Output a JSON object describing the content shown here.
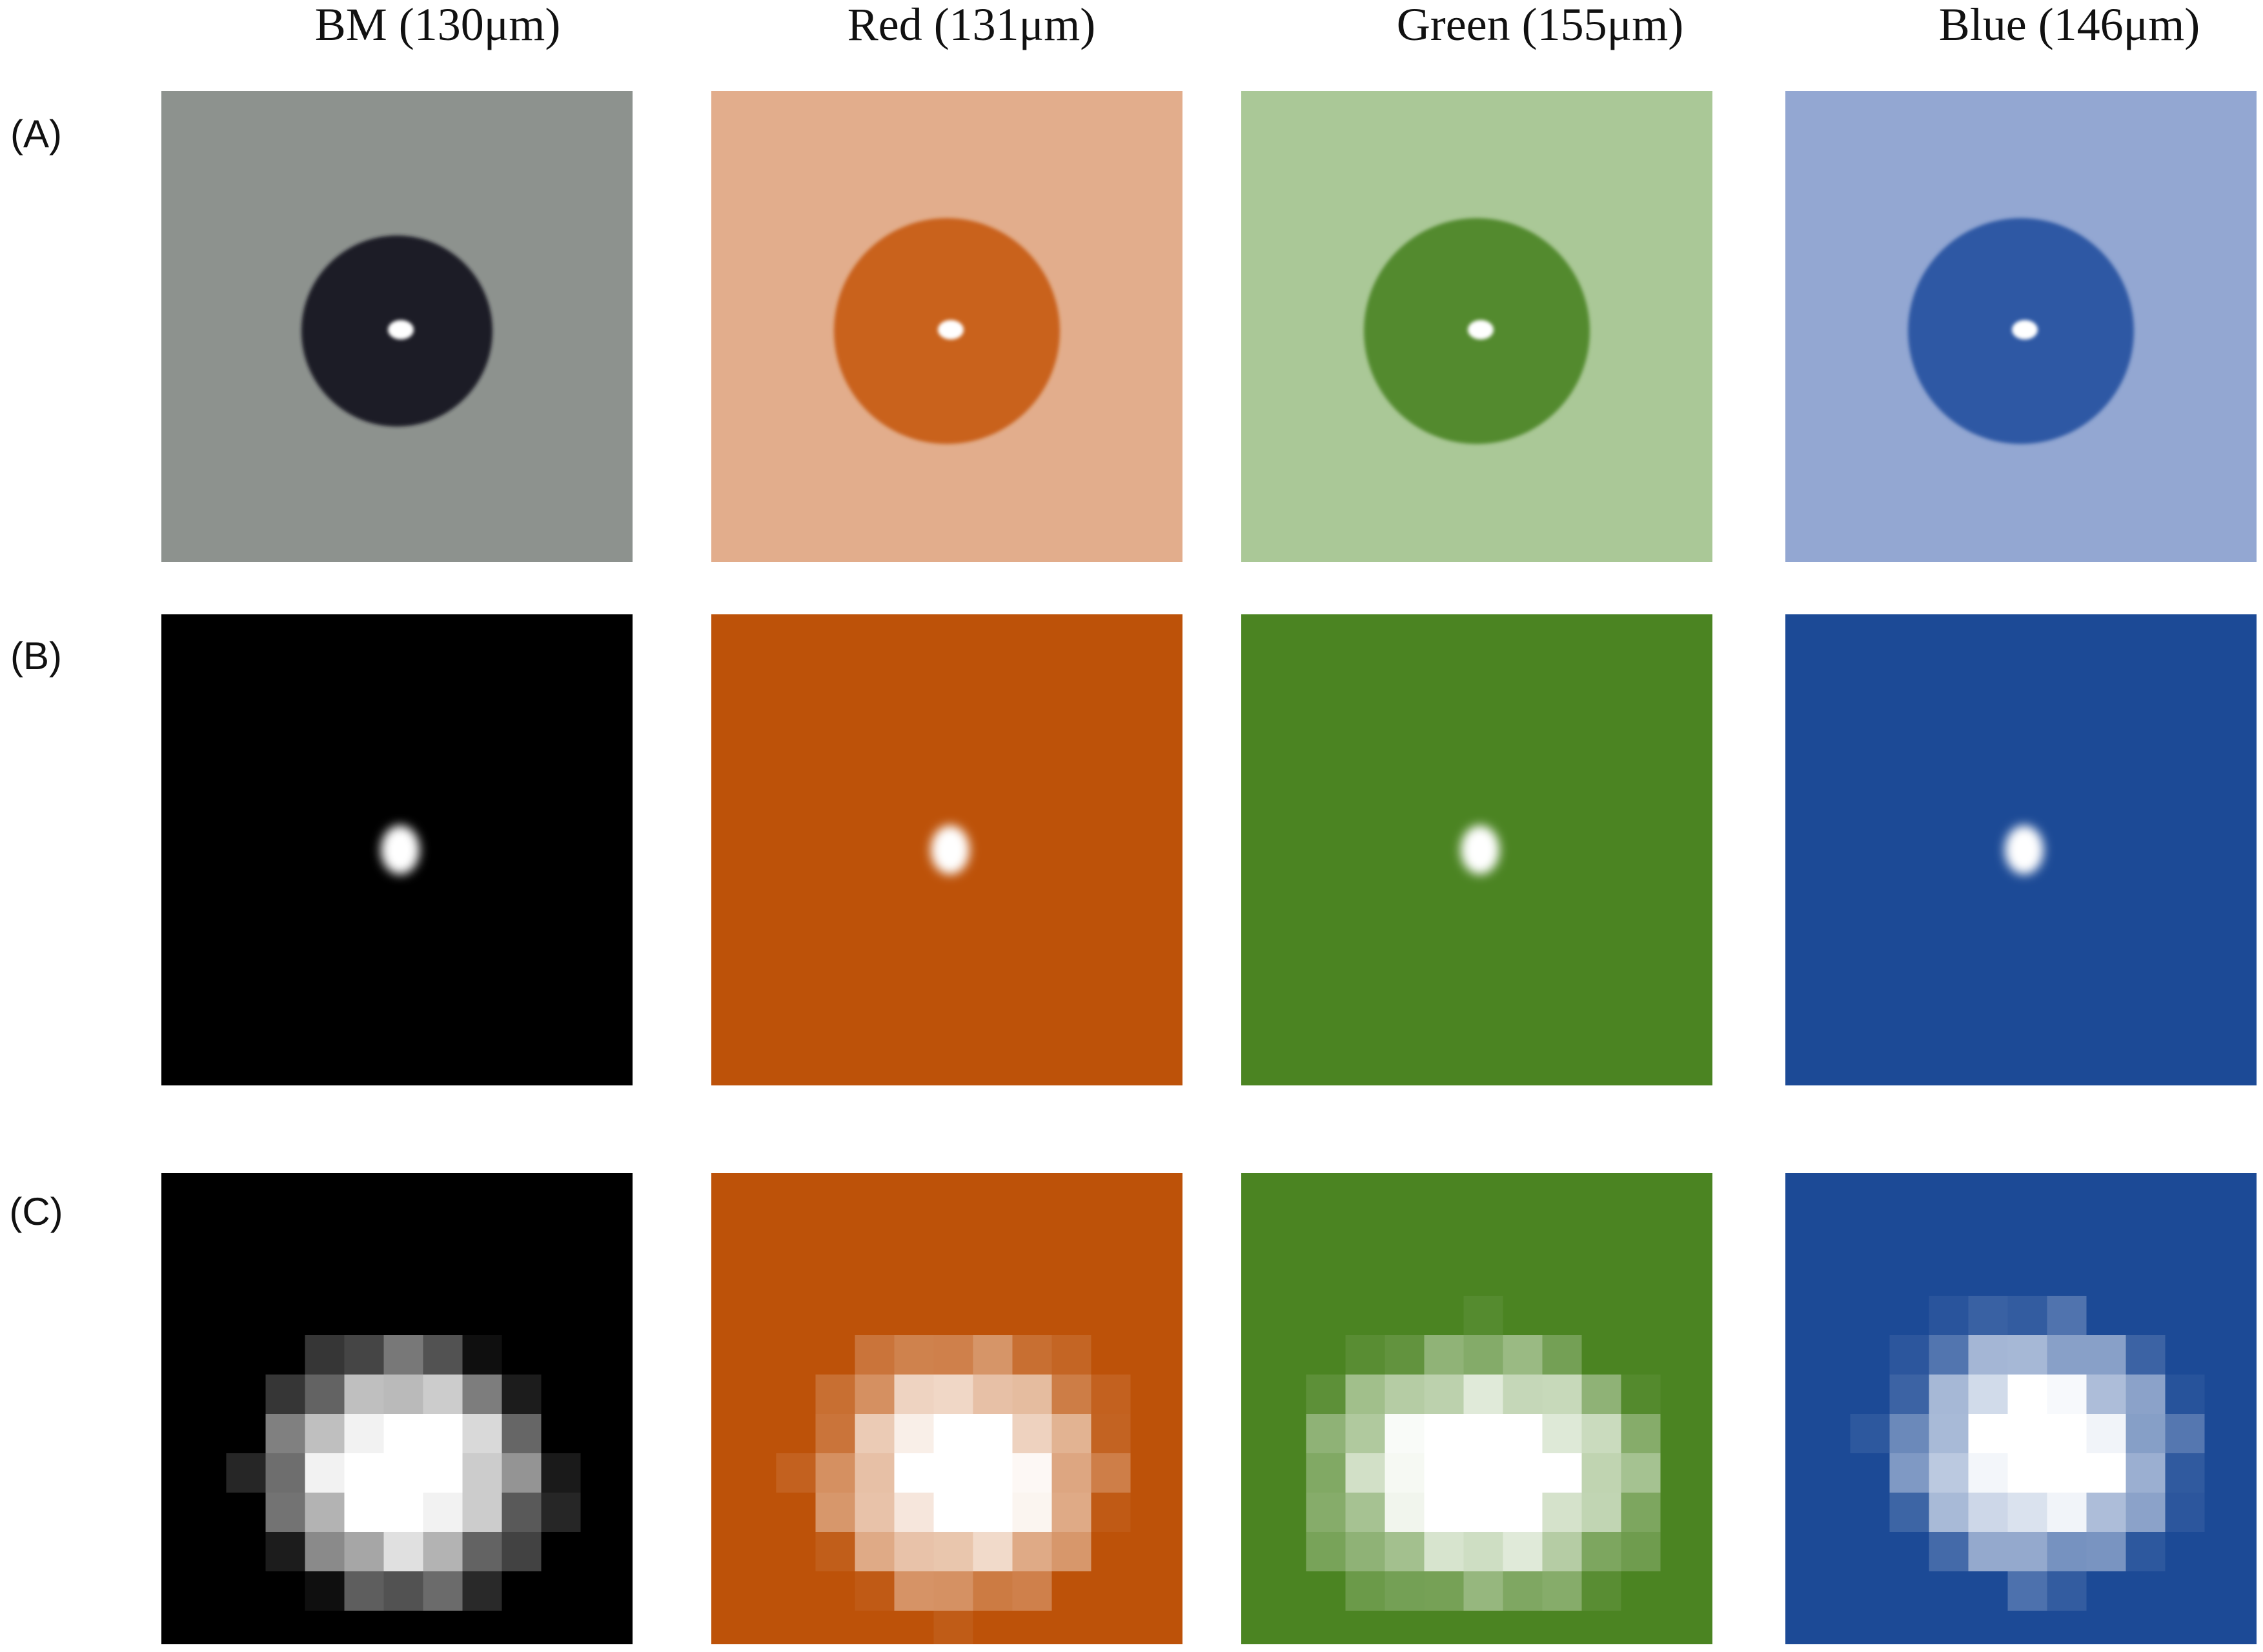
{
  "columns": [
    "BM (130μm)",
    "Red (131μm)",
    "Green (155μm)",
    "Blue (146μm)"
  ],
  "rows": [
    "(A)",
    "(B)",
    "(C)"
  ]
}
